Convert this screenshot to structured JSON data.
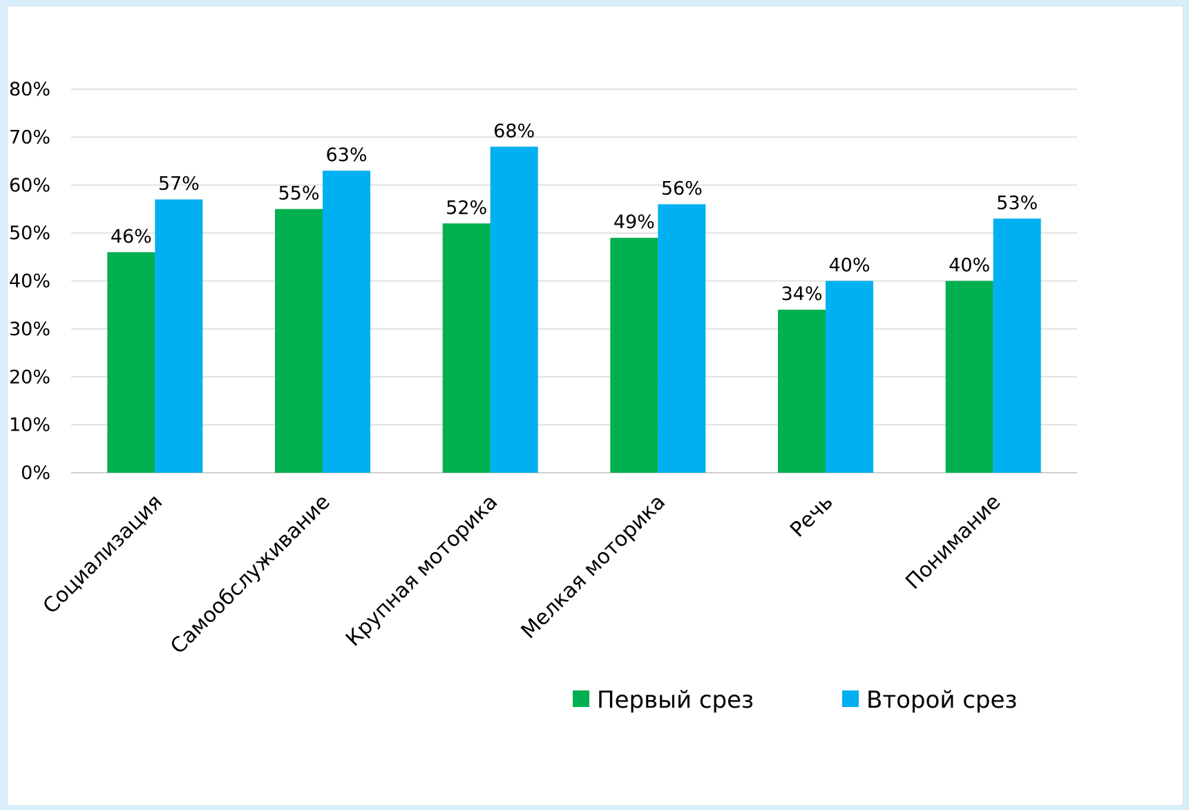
{
  "chart_data": {
    "type": "bar",
    "title": "",
    "xlabel": "",
    "ylabel": "",
    "categories": [
      "Социализация",
      "Самообслуживание",
      "Крупная моторика",
      "Мелкая моторика",
      "Речь",
      "Понимание"
    ],
    "series": [
      {
        "name": "Первый срез",
        "color": "#00b050",
        "values": [
          46,
          55,
          52,
          49,
          34,
          40
        ],
        "labels": [
          "46%",
          "55%",
          "52%",
          "49%",
          "34%",
          "40%"
        ]
      },
      {
        "name": "Второй срез",
        "color": "#00b0f0",
        "values": [
          57,
          63,
          68,
          56,
          40,
          53
        ],
        "labels": [
          "57%",
          "63%",
          "68%",
          "56%",
          "40%",
          "53%"
        ]
      }
    ],
    "ylim": [
      0,
      80
    ],
    "yticks": [
      0,
      10,
      20,
      30,
      40,
      50,
      60,
      70,
      80
    ],
    "ytick_labels": [
      "0%",
      "10%",
      "20%",
      "30%",
      "40%",
      "50%",
      "60%",
      "70%",
      "80%"
    ],
    "grid": true,
    "legend_position": "bottom-right"
  }
}
